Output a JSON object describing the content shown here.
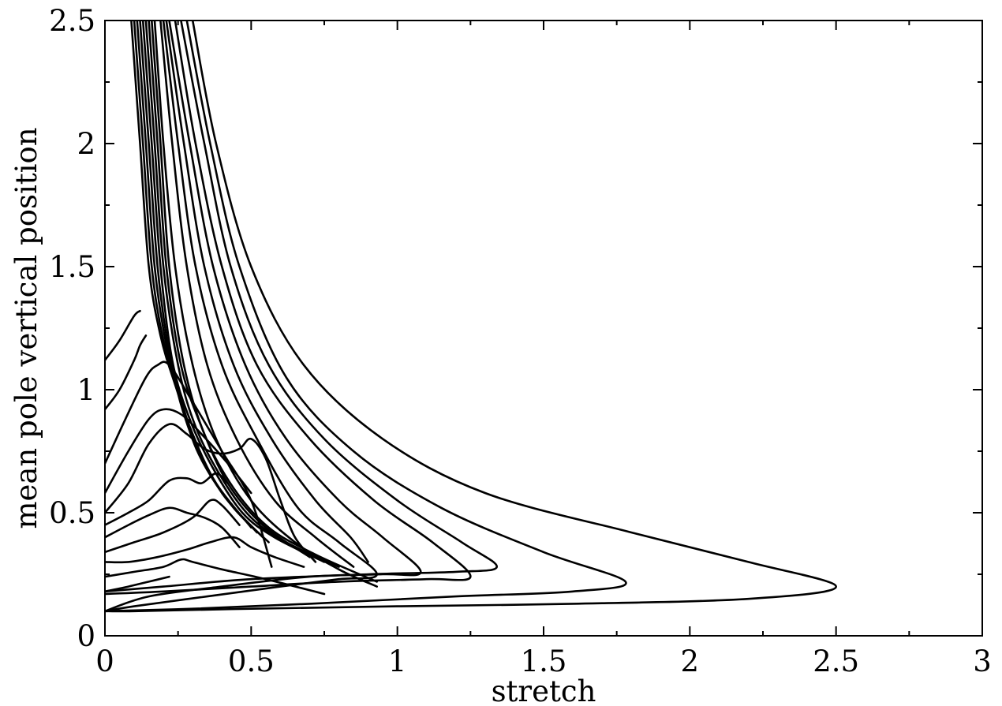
{
  "chart_data": {
    "type": "line",
    "title": "",
    "xlabel": "stretch",
    "ylabel": "mean pole vertical position",
    "xlim": [
      0,
      3
    ],
    "ylim": [
      0,
      2.5
    ],
    "x_ticks": [
      "0",
      "0.5",
      "1",
      "1.5",
      "2",
      "2.5",
      "3"
    ],
    "y_ticks": [
      "0",
      "0.5",
      "1",
      "1.5",
      "2",
      "2.5"
    ],
    "x_tick_values": [
      0,
      0.5,
      1,
      1.5,
      2,
      2.5,
      3
    ],
    "y_tick_values": [
      0,
      0.5,
      1,
      1.5,
      2,
      2.5
    ],
    "grid": false,
    "line_color": "#000000",
    "series": [
      {
        "points": [
          [
            0.3,
            2.5
          ],
          [
            0.38,
            2.0
          ],
          [
            0.5,
            1.5
          ],
          [
            0.68,
            1.1
          ],
          [
            0.95,
            0.8
          ],
          [
            1.3,
            0.58
          ],
          [
            1.8,
            0.42
          ],
          [
            2.2,
            0.3
          ],
          [
            2.5,
            0.2
          ],
          [
            2.2,
            0.15
          ],
          [
            1.6,
            0.13
          ],
          [
            1.0,
            0.12
          ],
          [
            0.5,
            0.11
          ],
          [
            0.1,
            0.1
          ],
          [
            0.0,
            0.1
          ]
        ]
      },
      {
        "points": [
          [
            0.28,
            2.5
          ],
          [
            0.36,
            2.0
          ],
          [
            0.46,
            1.5
          ],
          [
            0.62,
            1.05
          ],
          [
            0.85,
            0.75
          ],
          [
            1.15,
            0.52
          ],
          [
            1.5,
            0.34
          ],
          [
            1.78,
            0.22
          ],
          [
            1.6,
            0.18
          ],
          [
            1.2,
            0.16
          ],
          [
            0.7,
            0.13
          ],
          [
            0.3,
            0.11
          ],
          [
            0.0,
            0.1
          ]
        ]
      },
      {
        "points": [
          [
            0.26,
            2.5
          ],
          [
            0.34,
            2.0
          ],
          [
            0.43,
            1.5
          ],
          [
            0.56,
            1.1
          ],
          [
            0.75,
            0.8
          ],
          [
            1.0,
            0.55
          ],
          [
            1.22,
            0.38
          ],
          [
            1.34,
            0.28
          ],
          [
            1.2,
            0.26
          ],
          [
            0.9,
            0.25
          ],
          [
            0.5,
            0.23
          ],
          [
            0.2,
            0.2
          ],
          [
            0.0,
            0.18
          ]
        ]
      },
      {
        "points": [
          [
            0.24,
            2.5
          ],
          [
            0.31,
            2.0
          ],
          [
            0.4,
            1.5
          ],
          [
            0.52,
            1.1
          ],
          [
            0.7,
            0.8
          ],
          [
            0.92,
            0.55
          ],
          [
            1.12,
            0.38
          ],
          [
            1.25,
            0.24
          ],
          [
            1.1,
            0.23
          ],
          [
            0.8,
            0.22
          ],
          [
            0.5,
            0.2
          ],
          [
            0.2,
            0.18
          ],
          [
            0.0,
            0.17
          ]
        ]
      },
      {
        "points": [
          [
            0.22,
            2.5
          ],
          [
            0.29,
            2.0
          ],
          [
            0.37,
            1.5
          ],
          [
            0.48,
            1.1
          ],
          [
            0.62,
            0.8
          ],
          [
            0.8,
            0.55
          ],
          [
            0.95,
            0.4
          ],
          [
            1.08,
            0.26
          ],
          [
            0.95,
            0.25
          ],
          [
            0.7,
            0.24
          ],
          [
            0.4,
            0.2
          ],
          [
            0.15,
            0.16
          ],
          [
            0.0,
            0.1
          ]
        ]
      },
      {
        "points": [
          [
            0.21,
            2.5
          ],
          [
            0.27,
            2.0
          ],
          [
            0.34,
            1.5
          ],
          [
            0.44,
            1.1
          ],
          [
            0.57,
            0.8
          ],
          [
            0.72,
            0.55
          ],
          [
            0.84,
            0.4
          ],
          [
            0.9,
            0.3
          ]
        ]
      },
      {
        "points": [
          [
            0.2,
            2.5
          ],
          [
            0.25,
            2.0
          ],
          [
            0.31,
            1.5
          ],
          [
            0.4,
            1.1
          ],
          [
            0.52,
            0.8
          ],
          [
            0.66,
            0.52
          ],
          [
            0.8,
            0.38
          ],
          [
            0.93,
            0.25
          ],
          [
            0.8,
            0.23
          ],
          [
            0.6,
            0.2
          ],
          [
            0.35,
            0.16
          ],
          [
            0.1,
            0.12
          ],
          [
            0.0,
            0.1
          ]
        ]
      },
      {
        "points": [
          [
            0.19,
            2.5
          ],
          [
            0.23,
            2.0
          ],
          [
            0.28,
            1.5
          ],
          [
            0.35,
            1.1
          ],
          [
            0.45,
            0.8
          ],
          [
            0.58,
            0.55
          ],
          [
            0.72,
            0.4
          ],
          [
            0.85,
            0.28
          ]
        ]
      },
      {
        "points": [
          [
            0.17,
            2.5
          ],
          [
            0.2,
            2.0
          ],
          [
            0.24,
            1.5
          ],
          [
            0.3,
            1.1
          ],
          [
            0.38,
            0.8
          ],
          [
            0.5,
            0.55
          ],
          [
            0.65,
            0.38
          ],
          [
            0.8,
            0.27
          ],
          [
            0.93,
            0.2
          ]
        ]
      },
      {
        "points": [
          [
            0.16,
            2.5
          ],
          [
            0.19,
            2.0
          ],
          [
            0.22,
            1.5
          ],
          [
            0.27,
            1.1
          ],
          [
            0.34,
            0.82
          ],
          [
            0.44,
            0.6
          ],
          [
            0.56,
            0.44
          ],
          [
            0.72,
            0.33
          ],
          [
            0.93,
            0.22
          ]
        ]
      },
      {
        "points": [
          [
            0.15,
            2.5
          ],
          [
            0.18,
            2.0
          ],
          [
            0.21,
            1.5
          ],
          [
            0.26,
            1.1
          ],
          [
            0.33,
            0.85
          ],
          [
            0.42,
            0.62
          ],
          [
            0.54,
            0.45
          ],
          [
            0.7,
            0.32
          ]
        ]
      },
      {
        "points": [
          [
            0.14,
            2.5
          ],
          [
            0.17,
            2.0
          ],
          [
            0.2,
            1.5
          ],
          [
            0.25,
            1.1
          ],
          [
            0.31,
            0.85
          ],
          [
            0.4,
            0.64
          ],
          [
            0.5,
            0.48
          ],
          [
            0.62,
            0.38
          ],
          [
            0.8,
            0.28
          ]
        ]
      },
      {
        "points": [
          [
            0.13,
            2.5
          ],
          [
            0.16,
            2.0
          ],
          [
            0.19,
            1.5
          ],
          [
            0.23,
            1.12
          ],
          [
            0.29,
            0.88
          ],
          [
            0.37,
            0.68
          ],
          [
            0.47,
            0.5
          ],
          [
            0.58,
            0.4
          ],
          [
            0.75,
            0.3
          ]
        ]
      },
      {
        "points": [
          [
            0.12,
            2.5
          ],
          [
            0.15,
            2.0
          ],
          [
            0.18,
            1.5
          ],
          [
            0.22,
            1.15
          ],
          [
            0.27,
            0.9
          ],
          [
            0.34,
            0.7
          ],
          [
            0.44,
            0.52
          ],
          [
            0.56,
            0.38
          ]
        ]
      },
      {
        "points": [
          [
            0.11,
            2.5
          ],
          [
            0.14,
            2.0
          ],
          [
            0.17,
            1.5
          ],
          [
            0.21,
            1.18
          ],
          [
            0.26,
            0.95
          ],
          [
            0.32,
            0.74
          ],
          [
            0.42,
            0.55
          ],
          [
            0.54,
            0.4
          ]
        ]
      },
      {
        "points": [
          [
            0.1,
            2.5
          ],
          [
            0.13,
            2.0
          ],
          [
            0.16,
            1.5
          ],
          [
            0.2,
            1.2
          ],
          [
            0.25,
            1.0
          ],
          [
            0.31,
            0.78
          ],
          [
            0.4,
            0.58
          ],
          [
            0.52,
            0.42
          ]
        ]
      },
      {
        "points": [
          [
            0.09,
            2.5
          ],
          [
            0.12,
            2.0
          ],
          [
            0.15,
            1.5
          ],
          [
            0.19,
            1.22
          ],
          [
            0.24,
            1.02
          ],
          [
            0.3,
            0.82
          ],
          [
            0.38,
            0.62
          ],
          [
            0.5,
            0.44
          ]
        ]
      },
      {
        "points": [
          [
            0.0,
            1.12
          ],
          [
            0.05,
            1.2
          ],
          [
            0.1,
            1.3
          ],
          [
            0.12,
            1.32
          ]
        ]
      },
      {
        "points": [
          [
            0.0,
            0.92
          ],
          [
            0.05,
            1.0
          ],
          [
            0.1,
            1.12
          ],
          [
            0.12,
            1.18
          ],
          [
            0.14,
            1.22
          ]
        ]
      },
      {
        "points": [
          [
            0.0,
            0.7
          ],
          [
            0.07,
            0.88
          ],
          [
            0.14,
            1.05
          ],
          [
            0.18,
            1.1
          ],
          [
            0.22,
            1.1
          ],
          [
            0.3,
            0.95
          ],
          [
            0.4,
            0.75
          ],
          [
            0.5,
            0.55
          ],
          [
            0.57,
            0.28
          ]
        ]
      },
      {
        "points": [
          [
            0.0,
            0.58
          ],
          [
            0.08,
            0.75
          ],
          [
            0.15,
            0.88
          ],
          [
            0.2,
            0.92
          ],
          [
            0.26,
            0.9
          ],
          [
            0.33,
            0.82
          ],
          [
            0.42,
            0.7
          ],
          [
            0.5,
            0.58
          ]
        ]
      },
      {
        "points": [
          [
            0.0,
            0.5
          ],
          [
            0.08,
            0.62
          ],
          [
            0.15,
            0.78
          ],
          [
            0.22,
            0.86
          ],
          [
            0.28,
            0.82
          ],
          [
            0.34,
            0.76
          ],
          [
            0.4,
            0.74
          ],
          [
            0.46,
            0.76
          ],
          [
            0.5,
            0.8
          ],
          [
            0.55,
            0.72
          ],
          [
            0.6,
            0.55
          ],
          [
            0.65,
            0.4
          ],
          [
            0.72,
            0.3
          ]
        ]
      },
      {
        "points": [
          [
            0.0,
            0.45
          ],
          [
            0.08,
            0.5
          ],
          [
            0.15,
            0.55
          ],
          [
            0.22,
            0.63
          ],
          [
            0.28,
            0.64
          ],
          [
            0.33,
            0.62
          ],
          [
            0.38,
            0.66
          ],
          [
            0.42,
            0.62
          ]
        ]
      },
      {
        "points": [
          [
            0.0,
            0.4
          ],
          [
            0.08,
            0.45
          ],
          [
            0.15,
            0.49
          ],
          [
            0.22,
            0.52
          ],
          [
            0.28,
            0.5
          ],
          [
            0.34,
            0.48
          ],
          [
            0.4,
            0.44
          ],
          [
            0.46,
            0.36
          ]
        ]
      },
      {
        "points": [
          [
            0.0,
            0.34
          ],
          [
            0.1,
            0.38
          ],
          [
            0.2,
            0.42
          ],
          [
            0.3,
            0.48
          ],
          [
            0.36,
            0.55
          ],
          [
            0.4,
            0.53
          ],
          [
            0.46,
            0.45
          ]
        ]
      },
      {
        "points": [
          [
            0.0,
            0.3
          ],
          [
            0.08,
            0.3
          ],
          [
            0.18,
            0.32
          ],
          [
            0.28,
            0.35
          ],
          [
            0.36,
            0.38
          ],
          [
            0.44,
            0.4
          ],
          [
            0.5,
            0.36
          ],
          [
            0.58,
            0.32
          ],
          [
            0.68,
            0.28
          ]
        ]
      },
      {
        "points": [
          [
            0.0,
            0.24
          ],
          [
            0.1,
            0.26
          ],
          [
            0.2,
            0.28
          ],
          [
            0.26,
            0.31
          ],
          [
            0.3,
            0.3
          ],
          [
            0.4,
            0.27
          ],
          [
            0.55,
            0.23
          ],
          [
            0.75,
            0.17
          ]
        ]
      },
      {
        "points": [
          [
            0.0,
            0.18
          ],
          [
            0.08,
            0.2
          ],
          [
            0.15,
            0.22
          ],
          [
            0.22,
            0.24
          ]
        ]
      }
    ]
  }
}
